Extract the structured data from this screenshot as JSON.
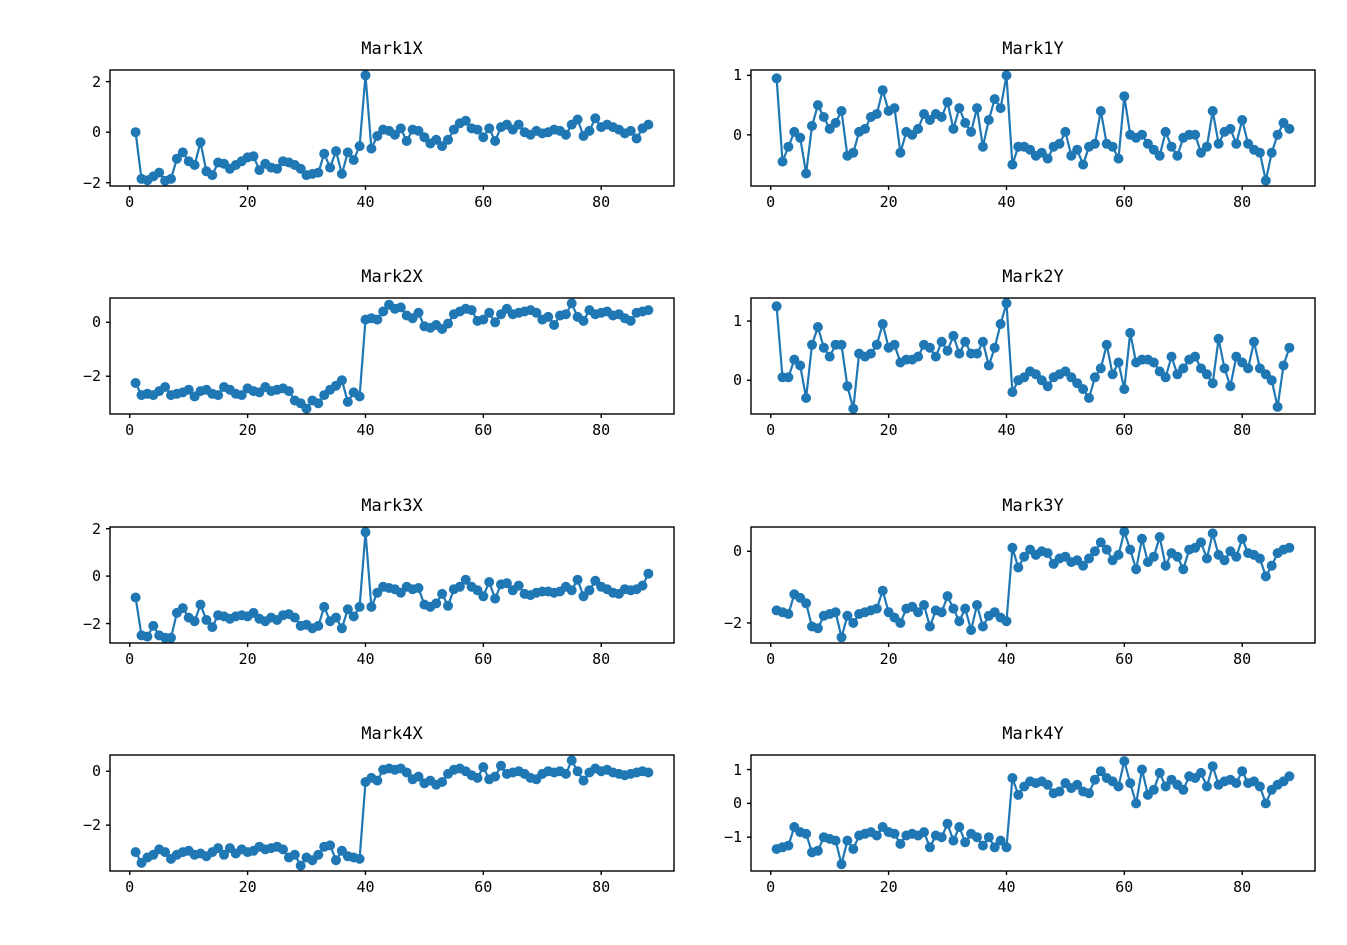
{
  "figure": {
    "background": "#ffffff",
    "line_color": "#1f77b4",
    "spine_color": "#000000",
    "marker": "circle"
  },
  "chart_data": [
    {
      "type": "line",
      "title": "Mark1X",
      "x_start": 1,
      "x_step": 1,
      "xlabel": "",
      "ylabel": "",
      "grid": false,
      "legend": null,
      "xticks": [
        0,
        20,
        40,
        60,
        80
      ],
      "yticks": [
        -2,
        0,
        2
      ],
      "xlim": [
        -3.35,
        92.35
      ],
      "ylim": [
        -2.13,
        2.46
      ],
      "values": [
        0.0,
        -1.85,
        -1.9,
        -1.75,
        -1.6,
        -1.92,
        -1.85,
        -1.05,
        -0.8,
        -1.15,
        -1.3,
        -0.4,
        -1.55,
        -1.7,
        -1.2,
        -1.25,
        -1.45,
        -1.3,
        -1.15,
        -1.0,
        -0.95,
        -1.5,
        -1.25,
        -1.4,
        -1.45,
        -1.15,
        -1.2,
        -1.3,
        -1.45,
        -1.7,
        -1.65,
        -1.6,
        -0.85,
        -1.4,
        -0.75,
        -1.65,
        -0.8,
        -1.1,
        -0.55,
        2.25,
        -0.65,
        -0.15,
        0.1,
        0.05,
        -0.1,
        0.15,
        -0.35,
        0.1,
        0.05,
        -0.2,
        -0.45,
        -0.3,
        -0.55,
        -0.3,
        0.1,
        0.35,
        0.45,
        0.15,
        0.1,
        -0.2,
        0.15,
        -0.35,
        0.2,
        0.3,
        0.1,
        0.3,
        0.0,
        -0.1,
        0.05,
        -0.05,
        0.0,
        0.1,
        0.05,
        -0.1,
        0.3,
        0.5,
        -0.15,
        0.05,
        0.55,
        0.2,
        0.3,
        0.2,
        0.1,
        -0.05,
        0.05,
        -0.25,
        0.15,
        0.3
      ]
    },
    {
      "type": "line",
      "title": "Mark1Y",
      "x_start": 1,
      "x_step": 1,
      "xlabel": "",
      "ylabel": "",
      "grid": false,
      "legend": null,
      "xticks": [
        0,
        20,
        40,
        60,
        80
      ],
      "yticks": [
        0,
        1
      ],
      "xlim": [
        -3.35,
        92.35
      ],
      "ylim": [
        -0.86,
        1.09
      ],
      "values": [
        0.95,
        -0.45,
        -0.2,
        0.05,
        -0.05,
        -0.65,
        0.15,
        0.5,
        0.3,
        0.1,
        0.2,
        0.4,
        -0.35,
        -0.3,
        0.05,
        0.1,
        0.3,
        0.35,
        0.75,
        0.4,
        0.45,
        -0.3,
        0.05,
        0.0,
        0.1,
        0.35,
        0.25,
        0.35,
        0.3,
        0.55,
        0.1,
        0.45,
        0.2,
        0.05,
        0.45,
        -0.2,
        0.25,
        0.6,
        0.45,
        1.0,
        -0.5,
        -0.2,
        -0.2,
        -0.25,
        -0.35,
        -0.3,
        -0.4,
        -0.2,
        -0.15,
        0.05,
        -0.35,
        -0.25,
        -0.5,
        -0.2,
        -0.15,
        0.4,
        -0.15,
        -0.2,
        -0.4,
        0.65,
        0.0,
        -0.05,
        0.0,
        -0.15,
        -0.25,
        -0.35,
        0.05,
        -0.2,
        -0.35,
        -0.05,
        0.0,
        0.0,
        -0.3,
        -0.2,
        0.4,
        -0.15,
        0.05,
        0.1,
        -0.15,
        0.25,
        -0.15,
        -0.25,
        -0.3,
        -0.77,
        -0.3,
        0.0,
        0.2,
        0.1
      ]
    },
    {
      "type": "line",
      "title": "Mark2X",
      "x_start": 1,
      "x_step": 1,
      "xlabel": "",
      "ylabel": "",
      "grid": false,
      "legend": null,
      "xticks": [
        0,
        20,
        40,
        60,
        80
      ],
      "yticks": [
        -2,
        0
      ],
      "xlim": [
        -3.35,
        92.35
      ],
      "ylim": [
        -3.4,
        0.9
      ],
      "values": [
        -2.25,
        -2.7,
        -2.65,
        -2.7,
        -2.55,
        -2.4,
        -2.7,
        -2.65,
        -2.6,
        -2.5,
        -2.75,
        -2.55,
        -2.5,
        -2.65,
        -2.7,
        -2.4,
        -2.5,
        -2.65,
        -2.7,
        -2.45,
        -2.55,
        -2.6,
        -2.4,
        -2.55,
        -2.5,
        -2.45,
        -2.55,
        -2.9,
        -3.0,
        -3.2,
        -2.9,
        -3.0,
        -2.7,
        -2.5,
        -2.35,
        -2.15,
        -2.95,
        -2.6,
        -2.75,
        0.1,
        0.15,
        0.1,
        0.4,
        0.65,
        0.5,
        0.55,
        0.25,
        0.15,
        0.35,
        -0.15,
        -0.2,
        -0.1,
        -0.25,
        -0.05,
        0.3,
        0.4,
        0.5,
        0.45,
        0.05,
        0.1,
        0.35,
        0.0,
        0.3,
        0.5,
        0.3,
        0.35,
        0.4,
        0.45,
        0.35,
        0.1,
        0.2,
        -0.1,
        0.25,
        0.3,
        0.7,
        0.2,
        0.05,
        0.45,
        0.3,
        0.35,
        0.4,
        0.25,
        0.3,
        0.15,
        0.05,
        0.35,
        0.4,
        0.45
      ]
    },
    {
      "type": "line",
      "title": "Mark2Y",
      "x_start": 1,
      "x_step": 1,
      "xlabel": "",
      "ylabel": "",
      "grid": false,
      "legend": null,
      "xticks": [
        0,
        20,
        40,
        60,
        80
      ],
      "yticks": [
        0,
        1
      ],
      "xlim": [
        -3.35,
        92.35
      ],
      "ylim": [
        -0.57,
        1.39
      ],
      "values": [
        1.25,
        0.05,
        0.05,
        0.35,
        0.25,
        -0.3,
        0.6,
        0.9,
        0.55,
        0.4,
        0.6,
        0.6,
        -0.1,
        -0.48,
        0.45,
        0.4,
        0.45,
        0.6,
        0.95,
        0.55,
        0.6,
        0.3,
        0.35,
        0.35,
        0.4,
        0.6,
        0.55,
        0.4,
        0.65,
        0.5,
        0.75,
        0.45,
        0.65,
        0.45,
        0.45,
        0.65,
        0.25,
        0.55,
        0.95,
        1.3,
        -0.2,
        0.0,
        0.05,
        0.15,
        0.1,
        0.0,
        -0.1,
        0.05,
        0.1,
        0.15,
        0.05,
        -0.05,
        -0.15,
        -0.3,
        0.05,
        0.2,
        0.6,
        0.1,
        0.3,
        -0.15,
        0.8,
        0.3,
        0.35,
        0.35,
        0.3,
        0.15,
        0.05,
        0.4,
        0.1,
        0.2,
        0.35,
        0.4,
        0.2,
        0.1,
        -0.05,
        0.7,
        0.2,
        -0.1,
        0.4,
        0.3,
        0.2,
        0.65,
        0.2,
        0.1,
        0.0,
        -0.45,
        0.25,
        0.55
      ]
    },
    {
      "type": "line",
      "title": "Mark3X",
      "x_start": 1,
      "x_step": 1,
      "xlabel": "",
      "ylabel": "",
      "grid": false,
      "legend": null,
      "xticks": [
        0,
        20,
        40,
        60,
        80
      ],
      "yticks": [
        -2,
        0,
        2
      ],
      "xlim": [
        -3.35,
        92.35
      ],
      "ylim": [
        -2.82,
        2.07
      ],
      "values": [
        -0.9,
        -2.5,
        -2.55,
        -2.1,
        -2.5,
        -2.6,
        -2.6,
        -1.55,
        -1.35,
        -1.75,
        -1.9,
        -1.2,
        -1.85,
        -2.15,
        -1.65,
        -1.7,
        -1.8,
        -1.7,
        -1.65,
        -1.7,
        -1.55,
        -1.8,
        -1.9,
        -1.75,
        -1.85,
        -1.65,
        -1.6,
        -1.75,
        -2.1,
        -2.05,
        -2.2,
        -2.1,
        -1.3,
        -1.9,
        -1.75,
        -2.2,
        -1.4,
        -1.7,
        -1.3,
        1.85,
        -1.3,
        -0.7,
        -0.45,
        -0.5,
        -0.55,
        -0.7,
        -0.45,
        -0.55,
        -0.5,
        -1.2,
        -1.3,
        -1.15,
        -0.75,
        -1.25,
        -0.55,
        -0.45,
        -0.15,
        -0.45,
        -0.6,
        -0.85,
        -0.25,
        -0.95,
        -0.35,
        -0.3,
        -0.6,
        -0.4,
        -0.75,
        -0.8,
        -0.7,
        -0.65,
        -0.65,
        -0.7,
        -0.65,
        -0.45,
        -0.6,
        -0.15,
        -0.85,
        -0.6,
        -0.2,
        -0.45,
        -0.55,
        -0.7,
        -0.75,
        -0.55,
        -0.6,
        -0.55,
        -0.4,
        0.1
      ]
    },
    {
      "type": "line",
      "title": "Mark3Y",
      "x_start": 1,
      "x_step": 1,
      "xlabel": "",
      "ylabel": "",
      "grid": false,
      "legend": null,
      "xticks": [
        0,
        20,
        40,
        60,
        80
      ],
      "yticks": [
        -2,
        0
      ],
      "xlim": [
        -3.35,
        92.35
      ],
      "ylim": [
        -2.56,
        0.68
      ],
      "values": [
        -1.65,
        -1.7,
        -1.75,
        -1.2,
        -1.3,
        -1.45,
        -2.1,
        -2.15,
        -1.8,
        -1.75,
        -1.7,
        -2.4,
        -1.8,
        -2.0,
        -1.75,
        -1.7,
        -1.65,
        -1.6,
        -1.1,
        -1.7,
        -1.85,
        -2.0,
        -1.6,
        -1.55,
        -1.7,
        -1.5,
        -2.1,
        -1.65,
        -1.7,
        -1.25,
        -1.6,
        -1.95,
        -1.6,
        -2.2,
        -1.5,
        -2.1,
        -1.8,
        -1.7,
        -1.85,
        -1.95,
        0.1,
        -0.45,
        -0.15,
        0.05,
        -0.1,
        0.0,
        -0.05,
        -0.35,
        -0.2,
        -0.15,
        -0.3,
        -0.25,
        -0.4,
        -0.2,
        0.0,
        0.25,
        0.05,
        -0.25,
        -0.1,
        0.55,
        0.05,
        -0.5,
        0.35,
        -0.3,
        -0.15,
        0.4,
        -0.4,
        -0.05,
        -0.15,
        -0.5,
        0.05,
        0.1,
        0.25,
        -0.2,
        0.5,
        -0.1,
        -0.25,
        0.0,
        -0.15,
        0.35,
        -0.05,
        -0.1,
        -0.2,
        -0.7,
        -0.4,
        -0.05,
        0.05,
        0.1
      ]
    },
    {
      "type": "line",
      "title": "Mark4X",
      "x_start": 1,
      "x_step": 1,
      "xlabel": "",
      "ylabel": "",
      "grid": false,
      "legend": null,
      "xticks": [
        0,
        20,
        40,
        60,
        80
      ],
      "yticks": [
        -2,
        0
      ],
      "xlim": [
        -3.35,
        92.35
      ],
      "ylim": [
        -3.7,
        0.6
      ],
      "values": [
        -3.0,
        -3.4,
        -3.2,
        -3.1,
        -2.9,
        -3.0,
        -3.25,
        -3.1,
        -3.0,
        -2.95,
        -3.1,
        -3.05,
        -3.15,
        -3.0,
        -2.85,
        -3.1,
        -2.85,
        -3.05,
        -2.9,
        -3.0,
        -2.95,
        -2.8,
        -2.9,
        -2.85,
        -2.8,
        -2.9,
        -3.2,
        -3.1,
        -3.5,
        -3.2,
        -3.3,
        -3.1,
        -2.8,
        -2.75,
        -3.3,
        -2.95,
        -3.15,
        -3.2,
        -3.25,
        -0.4,
        -0.25,
        -0.35,
        0.05,
        0.1,
        0.05,
        0.1,
        -0.05,
        -0.3,
        -0.2,
        -0.45,
        -0.35,
        -0.5,
        -0.4,
        -0.1,
        0.05,
        0.1,
        0.0,
        -0.15,
        -0.25,
        0.15,
        -0.3,
        -0.2,
        0.2,
        -0.1,
        -0.05,
        0.0,
        -0.1,
        -0.25,
        -0.3,
        -0.1,
        0.0,
        -0.05,
        0.0,
        -0.1,
        0.4,
        0.0,
        -0.35,
        -0.05,
        0.1,
        0.0,
        0.05,
        -0.05,
        -0.1,
        -0.15,
        -0.1,
        -0.05,
        0.0,
        -0.05
      ]
    },
    {
      "type": "line",
      "title": "Mark4Y",
      "x_start": 1,
      "x_step": 1,
      "xlabel": "",
      "ylabel": "",
      "grid": false,
      "legend": null,
      "xticks": [
        0,
        20,
        40,
        60,
        80
      ],
      "yticks": [
        -1,
        0,
        1
      ],
      "xlim": [
        -3.35,
        92.35
      ],
      "ylim": [
        -2.0,
        1.43
      ],
      "values": [
        -1.35,
        -1.3,
        -1.25,
        -0.7,
        -0.85,
        -0.9,
        -1.45,
        -1.4,
        -1.0,
        -1.05,
        -1.1,
        -1.8,
        -1.1,
        -1.35,
        -0.95,
        -0.9,
        -0.85,
        -0.95,
        -0.7,
        -0.85,
        -0.9,
        -1.2,
        -0.95,
        -0.9,
        -0.95,
        -0.85,
        -1.3,
        -0.95,
        -1.0,
        -0.6,
        -1.1,
        -0.7,
        -1.15,
        -0.9,
        -1.0,
        -1.25,
        -1.0,
        -1.3,
        -1.1,
        -1.3,
        0.75,
        0.25,
        0.5,
        0.65,
        0.6,
        0.65,
        0.55,
        0.3,
        0.35,
        0.6,
        0.45,
        0.55,
        0.35,
        0.3,
        0.7,
        0.95,
        0.75,
        0.65,
        0.5,
        1.25,
        0.6,
        0.0,
        1.0,
        0.25,
        0.4,
        0.9,
        0.5,
        0.7,
        0.55,
        0.4,
        0.8,
        0.75,
        0.9,
        0.5,
        1.1,
        0.55,
        0.65,
        0.7,
        0.6,
        0.95,
        0.6,
        0.65,
        0.5,
        0.0,
        0.4,
        0.55,
        0.65,
        0.8
      ]
    }
  ]
}
